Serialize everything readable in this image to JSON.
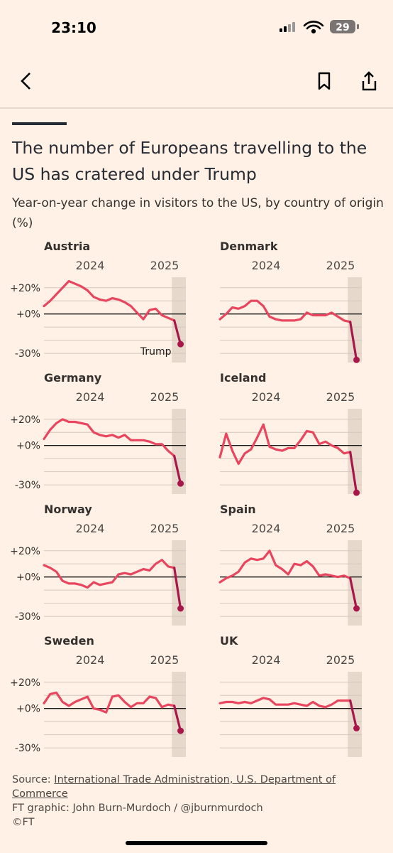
{
  "status_bar": {
    "time": "23:10",
    "battery": "29"
  },
  "header": {
    "title": "The number of Europeans travelling to the US has cratered under Trump",
    "subtitle": "Year-on-year change in visitors to the US, by country of origin (%)"
  },
  "chart_data": [
    {
      "type": "line",
      "title": "Austria",
      "x": [
        2023.333,
        2023.417,
        2023.5,
        2023.583,
        2023.667,
        2023.75,
        2023.833,
        2023.917,
        2024.0,
        2024.083,
        2024.167,
        2024.25,
        2024.333,
        2024.417,
        2024.5,
        2024.583,
        2024.667,
        2024.75,
        2024.833,
        2024.917,
        2025.0,
        2025.083,
        2025.167
      ],
      "values": [
        6,
        10,
        15,
        20,
        25,
        23,
        21,
        18,
        13,
        11,
        10,
        12,
        11,
        9,
        6,
        1,
        -4,
        3,
        4,
        -1,
        -3,
        -5,
        -23
      ],
      "color": "#e8455e",
      "highlight_color": "#a8174a",
      "xlim": [
        2023.333,
        2025.238
      ],
      "xticks": [
        2024,
        2025
      ],
      "ylim": [
        -37,
        28
      ],
      "yticks": [
        {
          "value": 20,
          "label": "+20%"
        },
        {
          "value": 0,
          "label": "+0%"
        },
        {
          "value": -30,
          "label": "-30%"
        }
      ],
      "minor_yticks": [
        10,
        -10,
        -20
      ],
      "ytick_labels": true,
      "highlight_x": [
        2025.05,
        2025.238
      ],
      "annotation": "Trump"
    },
    {
      "type": "line",
      "title": "Denmark",
      "x": [
        2023.333,
        2023.417,
        2023.5,
        2023.583,
        2023.667,
        2023.75,
        2023.833,
        2023.917,
        2024.0,
        2024.083,
        2024.167,
        2024.25,
        2024.333,
        2024.417,
        2024.5,
        2024.583,
        2024.667,
        2024.75,
        2024.833,
        2024.917,
        2025.0,
        2025.083,
        2025.167
      ],
      "values": [
        -4,
        0,
        5,
        4,
        6,
        10,
        10,
        6,
        -2,
        -4,
        -5,
        -5,
        -5,
        -4,
        1,
        -1,
        -1,
        -1,
        1,
        -2,
        -5,
        -6,
        -35
      ],
      "color": "#e8455e",
      "highlight_color": "#a8174a",
      "xlim": [
        2023.333,
        2025.238
      ],
      "xticks": [
        2024,
        2025
      ],
      "ylim": [
        -37,
        28
      ],
      "yticks": [
        20,
        10,
        0,
        -10,
        -20,
        -30
      ],
      "ytick_labels": false,
      "highlight_x": [
        2025.05,
        2025.238
      ]
    },
    {
      "type": "line",
      "title": "Germany",
      "x": [
        2023.333,
        2023.417,
        2023.5,
        2023.583,
        2023.667,
        2023.75,
        2023.833,
        2023.917,
        2024.0,
        2024.083,
        2024.167,
        2024.25,
        2024.333,
        2024.417,
        2024.5,
        2024.583,
        2024.667,
        2024.75,
        2024.833,
        2024.917,
        2025.0,
        2025.083,
        2025.167
      ],
      "values": [
        5,
        12,
        17,
        20,
        18,
        18,
        17,
        16,
        10,
        8,
        7,
        8,
        6,
        8,
        4,
        4,
        4,
        3,
        1,
        1,
        -4,
        -8,
        -29
      ],
      "color": "#e8455e",
      "highlight_color": "#a8174a",
      "xlim": [
        2023.333,
        2025.238
      ],
      "xticks": [
        2024,
        2025
      ],
      "ylim": [
        -37,
        28
      ],
      "yticks": [
        {
          "value": 20,
          "label": "+20%"
        },
        {
          "value": 0,
          "label": "+0%"
        },
        {
          "value": -30,
          "label": "-30%"
        }
      ],
      "minor_yticks": [
        10,
        -10,
        -20
      ],
      "ytick_labels": true,
      "highlight_x": [
        2025.05,
        2025.238
      ]
    },
    {
      "type": "line",
      "title": "Iceland",
      "x": [
        2023.333,
        2023.417,
        2023.5,
        2023.583,
        2023.667,
        2023.75,
        2023.833,
        2023.917,
        2024.0,
        2024.083,
        2024.167,
        2024.25,
        2024.333,
        2024.417,
        2024.5,
        2024.583,
        2024.667,
        2024.75,
        2024.833,
        2024.917,
        2025.0,
        2025.083,
        2025.167
      ],
      "values": [
        -9,
        9,
        -4,
        -14,
        -6,
        -3,
        6,
        16,
        -1,
        -3,
        -4,
        -2,
        -2,
        4,
        11,
        10,
        1,
        3,
        0,
        -2,
        -6,
        -5,
        -36
      ],
      "color": "#e8455e",
      "highlight_color": "#a8174a",
      "xlim": [
        2023.333,
        2025.238
      ],
      "xticks": [
        2024,
        2025
      ],
      "ylim": [
        -37,
        28
      ],
      "yticks": [
        20,
        10,
        0,
        -10,
        -20,
        -30
      ],
      "ytick_labels": false,
      "highlight_x": [
        2025.05,
        2025.238
      ]
    },
    {
      "type": "line",
      "title": "Norway",
      "x": [
        2023.333,
        2023.417,
        2023.5,
        2023.583,
        2023.667,
        2023.75,
        2023.833,
        2023.917,
        2024.0,
        2024.083,
        2024.167,
        2024.25,
        2024.333,
        2024.417,
        2024.5,
        2024.583,
        2024.667,
        2024.75,
        2024.833,
        2024.917,
        2025.0,
        2025.083,
        2025.167
      ],
      "values": [
        9,
        7,
        4,
        -3,
        -5,
        -5,
        -6,
        -8,
        -4,
        -6,
        -5,
        -4,
        2,
        3,
        2,
        4,
        6,
        5,
        10,
        13,
        8,
        7,
        -24
      ],
      "color": "#e8455e",
      "highlight_color": "#a8174a",
      "xlim": [
        2023.333,
        2025.238
      ],
      "xticks": [
        2024,
        2025
      ],
      "ylim": [
        -37,
        28
      ],
      "yticks": [
        {
          "value": 20,
          "label": "+20%"
        },
        {
          "value": 0,
          "label": "+0%"
        },
        {
          "value": -30,
          "label": "-30%"
        }
      ],
      "minor_yticks": [
        10,
        -10,
        -20
      ],
      "ytick_labels": true,
      "highlight_x": [
        2025.05,
        2025.238
      ]
    },
    {
      "type": "line",
      "title": "Spain",
      "x": [
        2023.333,
        2023.417,
        2023.5,
        2023.583,
        2023.667,
        2023.75,
        2023.833,
        2023.917,
        2024.0,
        2024.083,
        2024.167,
        2024.25,
        2024.333,
        2024.417,
        2024.5,
        2024.583,
        2024.667,
        2024.75,
        2024.833,
        2024.917,
        2025.0,
        2025.083,
        2025.167
      ],
      "values": [
        -4,
        -1,
        1,
        4,
        11,
        14,
        13,
        14,
        20,
        9,
        6,
        2,
        10,
        9,
        12,
        8,
        1,
        2,
        1,
        0,
        1,
        -1,
        -24
      ],
      "color": "#e8455e",
      "highlight_color": "#a8174a",
      "xlim": [
        2023.333,
        2025.238
      ],
      "xticks": [
        2024,
        2025
      ],
      "ylim": [
        -37,
        28
      ],
      "yticks": [
        20,
        10,
        0,
        -10,
        -20,
        -30
      ],
      "ytick_labels": false,
      "highlight_x": [
        2025.05,
        2025.238
      ]
    },
    {
      "type": "line",
      "title": "Sweden",
      "x": [
        2023.333,
        2023.417,
        2023.5,
        2023.583,
        2023.667,
        2023.75,
        2023.833,
        2023.917,
        2024.0,
        2024.083,
        2024.167,
        2024.25,
        2024.333,
        2024.417,
        2024.5,
        2024.583,
        2024.667,
        2024.75,
        2024.833,
        2024.917,
        2025.0,
        2025.083,
        2025.167
      ],
      "values": [
        4,
        11,
        12,
        5,
        2,
        5,
        7,
        9,
        0,
        -1,
        -3,
        9,
        10,
        5,
        1,
        4,
        4,
        9,
        8,
        1,
        3,
        2,
        -17
      ],
      "color": "#e8455e",
      "highlight_color": "#a8174a",
      "xlim": [
        2023.333,
        2025.238
      ],
      "xticks": [
        2024,
        2025
      ],
      "ylim": [
        -37,
        28
      ],
      "yticks": [
        {
          "value": 20,
          "label": "+20%"
        },
        {
          "value": 0,
          "label": "+0%"
        },
        {
          "value": -30,
          "label": "-30%"
        }
      ],
      "minor_yticks": [
        10,
        -10,
        -20
      ],
      "ytick_labels": true,
      "highlight_x": [
        2025.05,
        2025.238
      ]
    },
    {
      "type": "line",
      "title": "UK",
      "x": [
        2023.333,
        2023.417,
        2023.5,
        2023.583,
        2023.667,
        2023.75,
        2023.833,
        2023.917,
        2024.0,
        2024.083,
        2024.167,
        2024.25,
        2024.333,
        2024.417,
        2024.5,
        2024.583,
        2024.667,
        2024.75,
        2024.833,
        2024.917,
        2025.0,
        2025.083,
        2025.167
      ],
      "values": [
        4,
        5,
        5,
        4,
        5,
        4,
        6,
        8,
        7,
        3,
        3,
        3,
        4,
        3,
        2,
        5,
        2,
        1,
        3,
        6,
        6,
        6,
        -15
      ],
      "color": "#e8455e",
      "highlight_color": "#a8174a",
      "xlim": [
        2023.333,
        2025.238
      ],
      "xticks": [
        2024,
        2025
      ],
      "ylim": [
        -37,
        28
      ],
      "yticks": [
        20,
        10,
        0,
        -10,
        -20,
        -30
      ],
      "ytick_labels": false,
      "highlight_x": [
        2025.05,
        2025.238
      ]
    }
  ],
  "footer": {
    "source_label": "Source:",
    "source_link": "International Trade Administration, U.S. Department of Commerce",
    "credit": "FT graphic: John Burn-Murdoch / @jburnmurdoch",
    "copyright": "©FT"
  }
}
